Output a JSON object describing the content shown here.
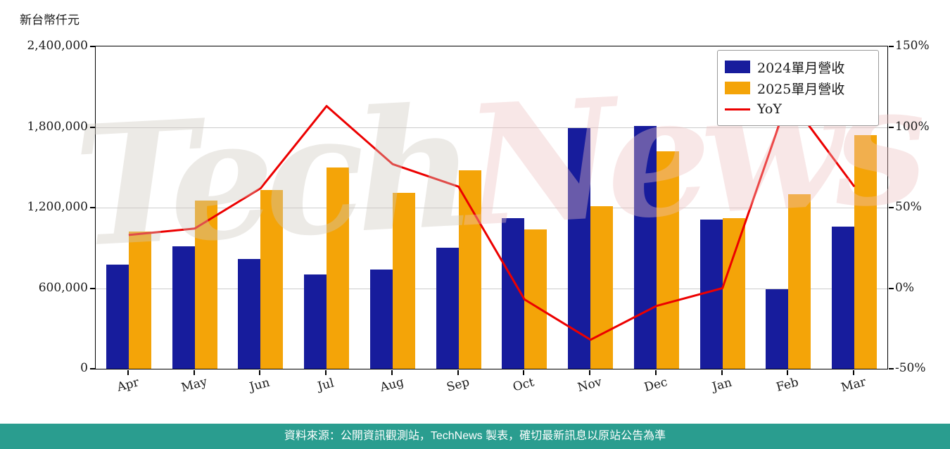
{
  "header": {
    "unit_label": "新台幣仟元"
  },
  "watermark": {
    "part1": "Tech",
    "part2": "News"
  },
  "footer": {
    "text": "資料來源：公開資訊觀測站，TechNews 製表，確切最新訊息以原站公告為準"
  },
  "colors": {
    "bar_2024": "#171c9c",
    "bar_2025": "#f4a408",
    "yoy_line": "#ec0000",
    "footer_bg": "#2a9d8f",
    "grid": "#cccccc"
  },
  "chart_data": {
    "type": "bar+line",
    "title": "",
    "categories": [
      "Apr",
      "May",
      "Jun",
      "Jul",
      "Aug",
      "Sep",
      "Oct",
      "Nov",
      "Dec",
      "Jan",
      "Feb",
      "Mar"
    ],
    "series": [
      {
        "name": "2024單月營收",
        "type": "bar",
        "axis": "left",
        "color": "#171c9c",
        "values": [
          775000,
          910000,
          820000,
          700000,
          740000,
          900000,
          1120000,
          1790000,
          1810000,
          1110000,
          590000,
          1060000
        ]
      },
      {
        "name": "2025單月營收",
        "type": "bar",
        "axis": "left",
        "color": "#f4a408",
        "values": [
          1020000,
          1250000,
          1330000,
          1500000,
          1310000,
          1480000,
          1040000,
          1210000,
          1620000,
          1120000,
          1300000,
          1740000
        ]
      },
      {
        "name": "YoY",
        "type": "line",
        "axis": "right",
        "color": "#ec0000",
        "values_percent": [
          33,
          37,
          62,
          113,
          77,
          63,
          -7,
          -32,
          -11,
          0,
          118,
          63
        ]
      }
    ],
    "left_axis": {
      "label": "新台幣仟元",
      "min": 0,
      "max": 2400000,
      "ticks": [
        {
          "value": 0,
          "label": "0"
        },
        {
          "value": 600000,
          "label": "600,000"
        },
        {
          "value": 1200000,
          "label": "1,200,000"
        },
        {
          "value": 1800000,
          "label": "1,800,000"
        },
        {
          "value": 2400000,
          "label": "2,400,000"
        }
      ]
    },
    "right_axis": {
      "min": -50,
      "max": 150,
      "ticks": [
        {
          "value": -50,
          "label": "-50%"
        },
        {
          "value": 0,
          "label": "0%"
        },
        {
          "value": 50,
          "label": "50%"
        },
        {
          "value": 100,
          "label": "100%"
        },
        {
          "value": 150,
          "label": "150%"
        }
      ]
    },
    "grid": true,
    "legend_position": "top-right"
  }
}
